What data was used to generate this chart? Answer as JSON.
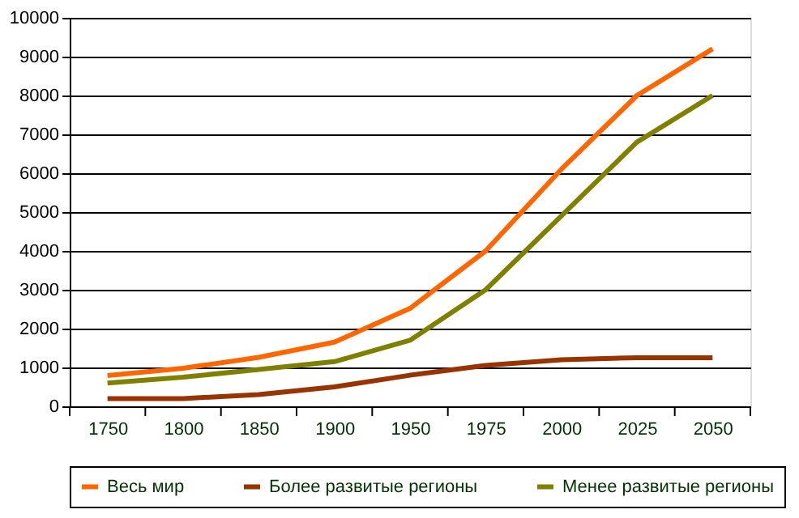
{
  "chart_data": {
    "type": "line",
    "categories": [
      "1750",
      "1800",
      "1850",
      "1900",
      "1950",
      "1975",
      "2000",
      "2025",
      "2050"
    ],
    "series": [
      {
        "name": "Весь мир",
        "color": "#ff6600",
        "values": [
          790,
          980,
          1260,
          1650,
          2520,
          4000,
          6100,
          8000,
          9200
        ]
      },
      {
        "name": "Более развитые регионы",
        "color": "#993300",
        "values": [
          200,
          200,
          300,
          500,
          800,
          1050,
          1200,
          1250,
          1250
        ]
      },
      {
        "name": "Менее развитые регионы",
        "color": "#808000",
        "values": [
          600,
          750,
          950,
          1150,
          1700,
          3000,
          4900,
          6800,
          8000
        ]
      }
    ],
    "ylim": [
      0,
      10000
    ],
    "yticks": [
      0,
      1000,
      2000,
      3000,
      4000,
      5000,
      6000,
      7000,
      8000,
      9000,
      10000
    ],
    "grid": "y",
    "legend": "bottom",
    "marker": "none",
    "line_style": "solid"
  }
}
